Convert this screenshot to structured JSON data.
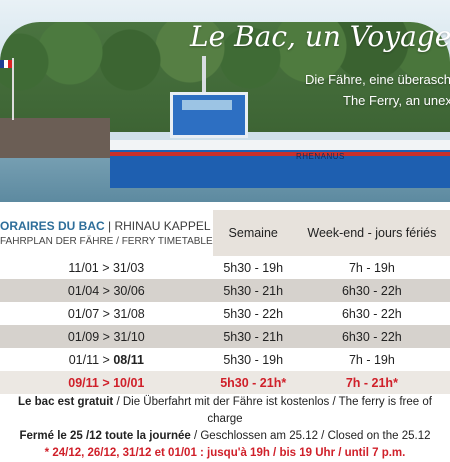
{
  "hero": {
    "title": "Le Bac, un Voyage inatt",
    "subtitle_de": "Die Fähre, eine überaschende",
    "subtitle_en": "The Ferry, an unexpec",
    "ship_name": "RHENANUS"
  },
  "timetable": {
    "heading_main": "ORAIRES DU BAC",
    "heading_place": "| RHINAU KAPPEL",
    "heading_sub": "FAHRPLAN DER FÄHRE / FERRY TIMETABLE",
    "col_week": "Semaine",
    "col_weekend": "Week-end - jours fériés",
    "rows": [
      {
        "period": "11/01 > 31/03",
        "week": "5h30 - 19h",
        "weekend": "7h - 19h"
      },
      {
        "period": "01/04 > 30/06",
        "week": "5h30 - 21h",
        "weekend": "6h30 - 22h"
      },
      {
        "period": "01/07 > 31/08",
        "week": "5h30 - 22h",
        "weekend": "6h30 - 22h"
      },
      {
        "period": "01/09 > 31/10",
        "week": "5h30 - 21h",
        "weekend": "6h30 - 22h"
      },
      {
        "period_a": "01/11 > ",
        "period_b": "08/11",
        "week": "5h30 - 19h",
        "weekend": "7h - 19h"
      },
      {
        "period": "09/11 > 10/01",
        "week": "5h30 - 21h*",
        "weekend": "7h - 21h*"
      }
    ]
  },
  "footer": {
    "line1_bold": "Le bac est gratuit",
    "line1_rest": " / Die Überfahrt mit der Fähre ist kostenlos / The ferry is free of charge",
    "line2_bold": "Fermé le 25 /12 toute la journée",
    "line2_rest": " / Geschlossen am 25.12 / Closed on the 25.12",
    "line3": "* 24/12, 26/12, 31/12 et 01/01 : jusqu'à 19h / bis 19 Uhr / until 7 p.m."
  },
  "colors": {
    "accent_red": "#d0202a",
    "header_blue": "#2e6e9a",
    "header_bg": "#e7e2dc",
    "row_shade": "#d6d2cd"
  }
}
